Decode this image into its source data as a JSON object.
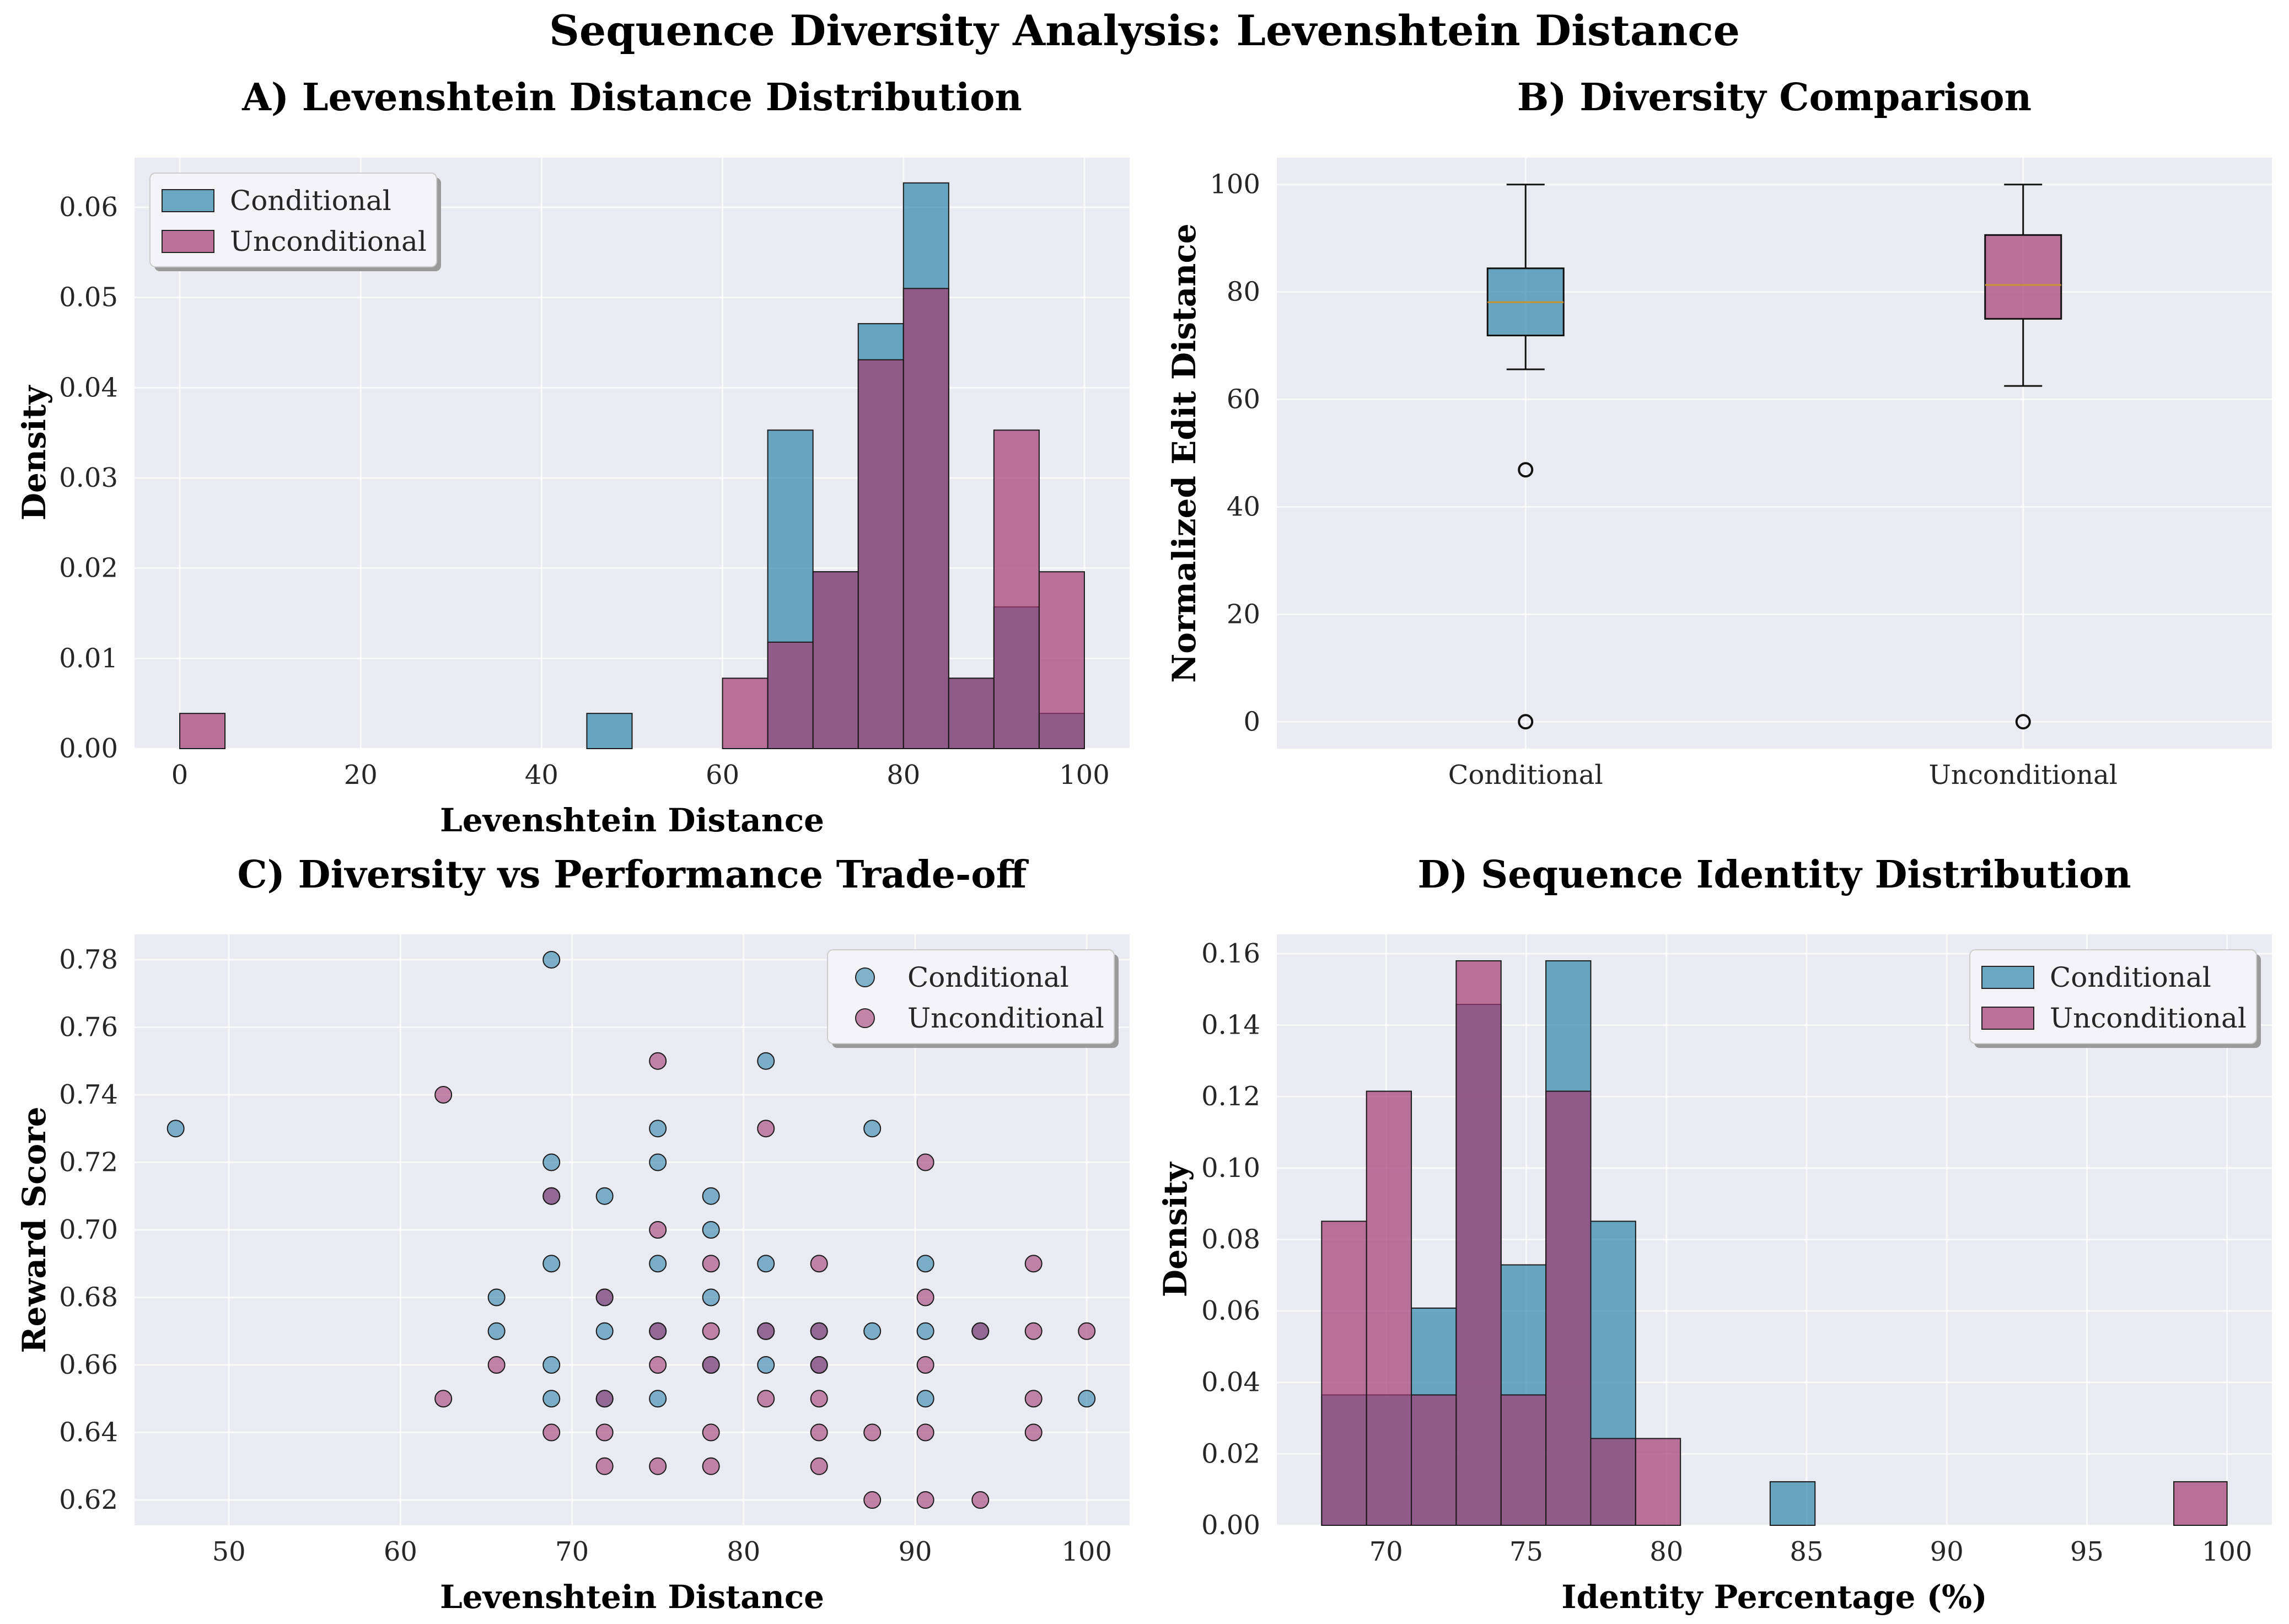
{
  "figure": {
    "title": "Sequence Diversity Analysis: Levenshtein Distance",
    "colors": {
      "conditional": "#2E86AB",
      "unconditional": "#A23B72",
      "panel_bg": "#EAEAF2",
      "median": "#C8922F"
    }
  },
  "chart_data": [
    {
      "id": "A",
      "type": "bar",
      "subtype": "histogram-overlay",
      "title": "A) Levenshtein Distance Distribution",
      "xlabel": "Levenshtein Distance",
      "ylabel": "Density",
      "xlim": [
        -5,
        105
      ],
      "ylim": [
        0,
        0.0655
      ],
      "xticks": [
        0,
        20,
        40,
        60,
        80,
        100
      ],
      "yticks": [
        0.0,
        0.01,
        0.02,
        0.03,
        0.04,
        0.05,
        0.06
      ],
      "legend_position": "top-left",
      "grid": true,
      "bin_edges": [
        0,
        5,
        10,
        15,
        20,
        25,
        30,
        35,
        40,
        45,
        50,
        55,
        60,
        65,
        70,
        75,
        80,
        85,
        90,
        95,
        100
      ],
      "series": [
        {
          "name": "Conditional",
          "values": [
            0,
            0,
            0,
            0,
            0,
            0,
            0,
            0,
            0,
            0.0039,
            0,
            0,
            0,
            0.0353,
            0.0196,
            0.0471,
            0.0627,
            0.0078,
            0.0157,
            0.0039
          ]
        },
        {
          "name": "Unconditional",
          "values": [
            0.0039,
            0,
            0,
            0,
            0,
            0,
            0,
            0,
            0,
            0,
            0,
            0,
            0.0078,
            0.0118,
            0.0196,
            0.0431,
            0.051,
            0.0078,
            0.0353,
            0.0196
          ]
        }
      ]
    },
    {
      "id": "B",
      "type": "box",
      "title": "B) Diversity Comparison",
      "xlabel": "",
      "ylabel": "Normalized Edit Distance",
      "ylim": [
        -5,
        105
      ],
      "yticks": [
        0,
        20,
        40,
        60,
        80,
        100
      ],
      "categories": [
        "Conditional",
        "Unconditional"
      ],
      "grid": true,
      "boxes": [
        {
          "name": "Conditional",
          "whisker_low": 65.6,
          "q1": 71.9,
          "median": 78.1,
          "q3": 84.4,
          "whisker_high": 100,
          "outliers": [
            46.9,
            0
          ]
        },
        {
          "name": "Unconditional",
          "whisker_low": 62.5,
          "q1": 75,
          "median": 81.3,
          "q3": 90.6,
          "whisker_high": 100,
          "outliers": [
            0
          ]
        }
      ]
    },
    {
      "id": "C",
      "type": "scatter",
      "title": "C) Diversity vs Performance Trade-off",
      "xlabel": "Levenshtein Distance",
      "ylabel": "Reward Score",
      "xlim": [
        44.5,
        102.5
      ],
      "ylim": [
        0.6125,
        0.7875
      ],
      "xticks": [
        50,
        60,
        70,
        80,
        90,
        100
      ],
      "yticks": [
        0.62,
        0.64,
        0.66,
        0.68,
        0.7,
        0.72,
        0.74,
        0.76,
        0.78
      ],
      "legend_position": "top-right",
      "grid": true,
      "series": [
        {
          "name": "Conditional",
          "points": [
            [
              46.9,
              0.73
            ],
            [
              68.8,
              0.78
            ],
            [
              68.8,
              0.72
            ],
            [
              68.8,
              0.71
            ],
            [
              68.8,
              0.69
            ],
            [
              68.8,
              0.66
            ],
            [
              68.8,
              0.65
            ],
            [
              65.6,
              0.68
            ],
            [
              65.6,
              0.67
            ],
            [
              71.9,
              0.71
            ],
            [
              71.9,
              0.68
            ],
            [
              71.9,
              0.67
            ],
            [
              71.9,
              0.65
            ],
            [
              75.0,
              0.73
            ],
            [
              75.0,
              0.72
            ],
            [
              75.0,
              0.69
            ],
            [
              75.0,
              0.67
            ],
            [
              75.0,
              0.65
            ],
            [
              78.1,
              0.71
            ],
            [
              78.1,
              0.7
            ],
            [
              78.1,
              0.68
            ],
            [
              78.1,
              0.66
            ],
            [
              81.3,
              0.75
            ],
            [
              81.3,
              0.69
            ],
            [
              81.3,
              0.67
            ],
            [
              81.3,
              0.66
            ],
            [
              84.4,
              0.67
            ],
            [
              84.4,
              0.66
            ],
            [
              87.5,
              0.73
            ],
            [
              87.5,
              0.67
            ],
            [
              90.6,
              0.69
            ],
            [
              90.6,
              0.67
            ],
            [
              90.6,
              0.65
            ],
            [
              93.8,
              0.67
            ],
            [
              100,
              0.65
            ]
          ]
        },
        {
          "name": "Unconditional",
          "points": [
            [
              62.5,
              0.74
            ],
            [
              62.5,
              0.65
            ],
            [
              65.6,
              0.66
            ],
            [
              68.8,
              0.71
            ],
            [
              68.8,
              0.64
            ],
            [
              71.9,
              0.68
            ],
            [
              71.9,
              0.65
            ],
            [
              71.9,
              0.64
            ],
            [
              71.9,
              0.63
            ],
            [
              75.0,
              0.75
            ],
            [
              75.0,
              0.7
            ],
            [
              75.0,
              0.67
            ],
            [
              75.0,
              0.66
            ],
            [
              75.0,
              0.63
            ],
            [
              78.1,
              0.69
            ],
            [
              78.1,
              0.67
            ],
            [
              78.1,
              0.66
            ],
            [
              78.1,
              0.64
            ],
            [
              78.1,
              0.63
            ],
            [
              81.3,
              0.73
            ],
            [
              81.3,
              0.67
            ],
            [
              81.3,
              0.65
            ],
            [
              84.4,
              0.69
            ],
            [
              84.4,
              0.67
            ],
            [
              84.4,
              0.66
            ],
            [
              84.4,
              0.65
            ],
            [
              84.4,
              0.64
            ],
            [
              84.4,
              0.63
            ],
            [
              87.5,
              0.64
            ],
            [
              87.5,
              0.62
            ],
            [
              90.6,
              0.72
            ],
            [
              90.6,
              0.68
            ],
            [
              90.6,
              0.66
            ],
            [
              90.6,
              0.64
            ],
            [
              90.6,
              0.62
            ],
            [
              93.8,
              0.67
            ],
            [
              93.8,
              0.62
            ],
            [
              96.9,
              0.69
            ],
            [
              96.9,
              0.67
            ],
            [
              96.9,
              0.65
            ],
            [
              96.9,
              0.64
            ],
            [
              100,
              0.67
            ]
          ]
        }
      ]
    },
    {
      "id": "D",
      "type": "bar",
      "subtype": "histogram-overlay",
      "title": "D) Sequence Identity Distribution",
      "xlabel": "Identity Percentage (%)",
      "ylabel": "Density",
      "xlim": [
        66.1,
        101.6
      ],
      "ylim": [
        0,
        0.1654
      ],
      "xticks": [
        70,
        75,
        80,
        85,
        90,
        95,
        100
      ],
      "yticks": [
        0.0,
        0.02,
        0.04,
        0.06,
        0.08,
        0.1,
        0.12,
        0.14,
        0.16
      ],
      "legend_position": "top-right",
      "grid": true,
      "bin_edges": [
        67.7,
        69.3,
        70.9,
        72.5,
        74.1,
        75.7,
        77.3,
        78.9,
        80.5,
        82.1,
        83.7,
        85.3,
        86.9,
        88.5,
        90.1,
        91.7,
        93.3,
        94.9,
        96.5,
        98.1,
        100
      ],
      "series": [
        {
          "name": "Conditional",
          "values": [
            0.0365,
            0.0365,
            0.0608,
            0.1458,
            0.0729,
            0.158,
            0.0851,
            0,
            0,
            0,
            0.0122,
            0,
            0,
            0,
            0,
            0,
            0,
            0,
            0,
            0
          ]
        },
        {
          "name": "Unconditional",
          "values": [
            0.0851,
            0.1215,
            0.0365,
            0.158,
            0.0365,
            0.1215,
            0.0243,
            0.0243,
            0,
            0,
            0,
            0,
            0,
            0,
            0,
            0,
            0,
            0,
            0,
            0.0122
          ]
        }
      ]
    }
  ]
}
